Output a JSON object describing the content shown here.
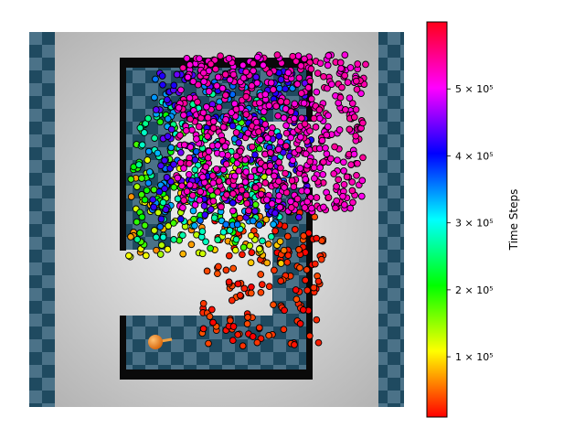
{
  "chart_data": {
    "type": "scatter",
    "title": "",
    "background": "top-down maze render: light grey floor, dark-blue checkered tiles, black U-shaped wall, orange ball agent",
    "colormap": "hsv",
    "colorbar": {
      "label": "Time Steps",
      "vmin": 10000,
      "vmax": 600000,
      "ticks": [
        {
          "value": 100000,
          "label": "1 × 10⁵"
        },
        {
          "value": 200000,
          "label": "2 × 10⁵"
        },
        {
          "value": 300000,
          "label": "3 × 10⁵"
        },
        {
          "value": 400000,
          "label": "4 × 10⁵"
        },
        {
          "value": 500000,
          "label": "5 × 10⁵"
        }
      ]
    },
    "clusters": [
      {
        "time_steps": 25000,
        "x_range": [
          0.48,
          0.8
        ],
        "y_range": [
          0.16,
          0.52
        ],
        "count": 150
      },
      {
        "time_steps": 75000,
        "x_range": [
          0.28,
          0.72
        ],
        "y_range": [
          0.38,
          0.62
        ],
        "count": 60
      },
      {
        "time_steps": 130000,
        "x_range": [
          0.28,
          0.66
        ],
        "y_range": [
          0.4,
          0.68
        ],
        "count": 70
      },
      {
        "time_steps": 200000,
        "x_range": [
          0.28,
          0.64
        ],
        "y_range": [
          0.42,
          0.78
        ],
        "count": 110
      },
      {
        "time_steps": 280000,
        "x_range": [
          0.3,
          0.68
        ],
        "y_range": [
          0.44,
          0.84
        ],
        "count": 110
      },
      {
        "time_steps": 360000,
        "x_range": [
          0.32,
          0.72
        ],
        "y_range": [
          0.48,
          0.88
        ],
        "count": 130
      },
      {
        "time_steps": 440000,
        "x_range": [
          0.34,
          0.76
        ],
        "y_range": [
          0.5,
          0.9
        ],
        "count": 180
      },
      {
        "time_steps": 540000,
        "x_range": [
          0.4,
          0.9
        ],
        "y_range": [
          0.52,
          0.94
        ],
        "count": 600
      }
    ],
    "grid": false
  },
  "colors": {
    "floor_center": "#f2f2f2",
    "floor_edge": "#b4b4b4",
    "tile_dark": "#1f4a60",
    "tile_light": "#4b7288",
    "wall": "#0a0a0a",
    "agent": "#f08020",
    "marker_edge": "#000000"
  },
  "icons": {
    "agent": "orange-ball-agent"
  }
}
